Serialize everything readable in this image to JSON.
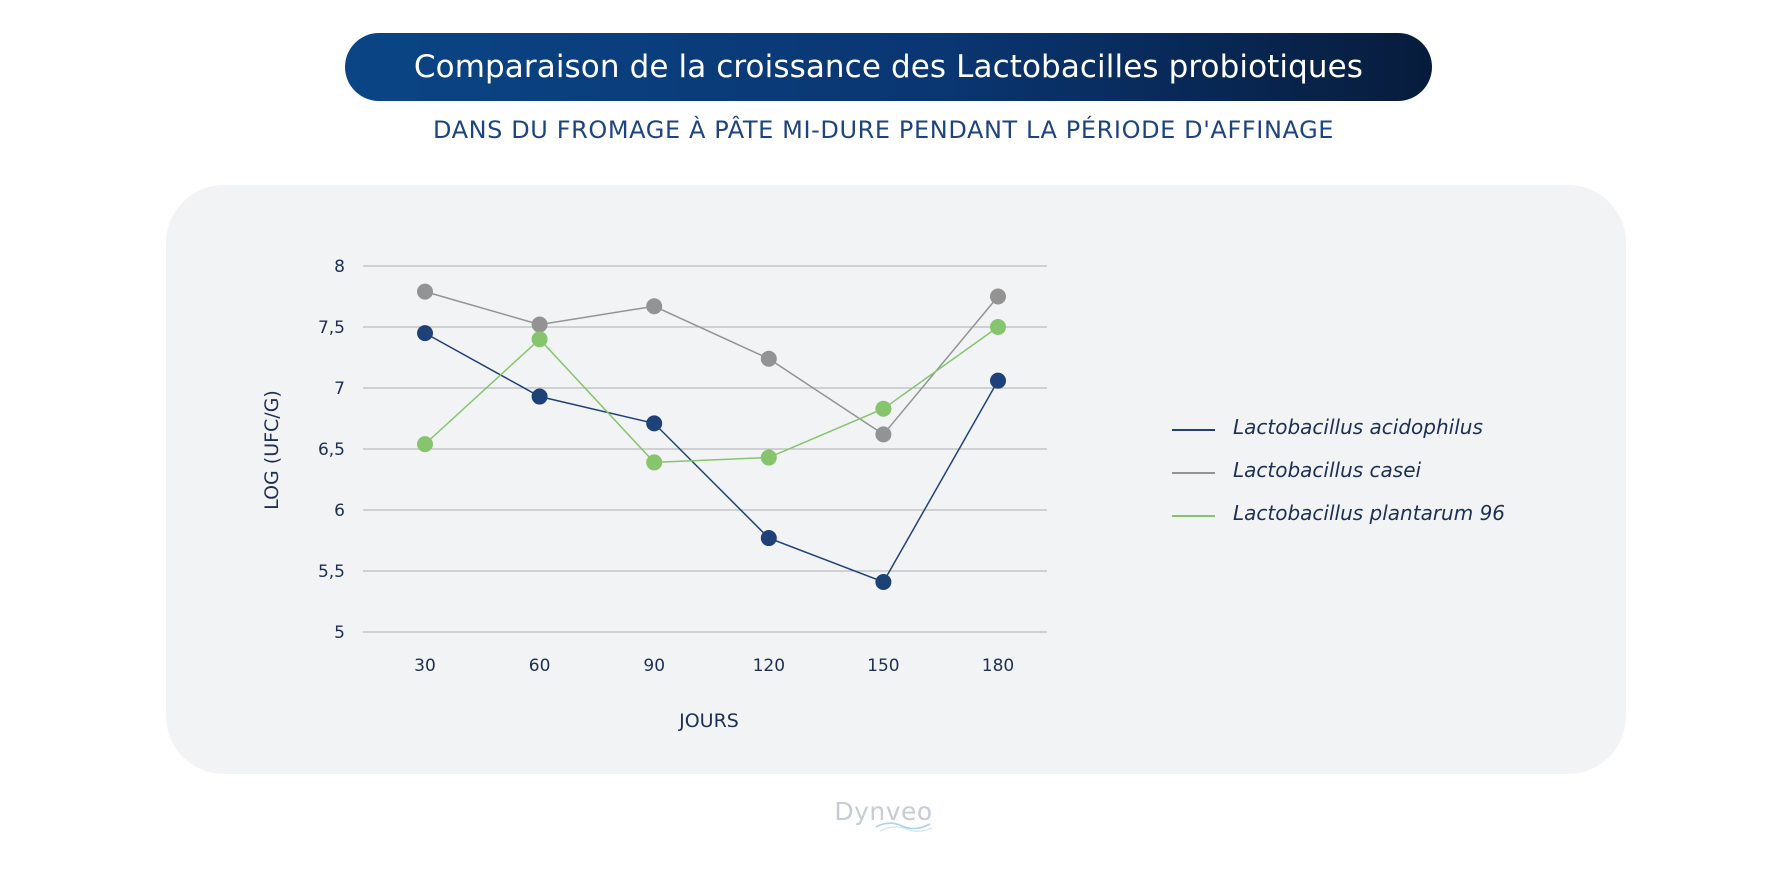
{
  "header": {
    "title": "Comparaison de la croissance des Lactobacilles probiotiques",
    "subtitle": "DANS DU FROMAGE À PÂTE MI-DURE PENDANT LA PÉRIODE D'AFFINAGE"
  },
  "brand": {
    "name": "Dynveo",
    "color": "#c6ccd3"
  },
  "chart_data": {
    "type": "line",
    "title": "Comparaison de la croissance des Lactobacilles probiotiques",
    "subtitle": "DANS DU FROMAGE À PÂTE MI-DURE PENDANT LA PÉRIODE D'AFFINAGE",
    "xlabel": "JOURS",
    "ylabel": "LOG (UFC/G)",
    "categories": [
      "30",
      "60",
      "90",
      "120",
      "150",
      "180"
    ],
    "ylim": [
      5,
      8
    ],
    "yticks": [
      {
        "value": 8,
        "label": "8"
      },
      {
        "value": 7.5,
        "label": "7,5"
      },
      {
        "value": 7,
        "label": "7"
      },
      {
        "value": 6.5,
        "label": "6,5"
      },
      {
        "value": 6,
        "label": "6"
      },
      {
        "value": 5.5,
        "label": "5,5"
      },
      {
        "value": 5,
        "label": "5"
      }
    ],
    "grid": true,
    "legend_position": "right",
    "series": [
      {
        "name": "Lactobacillus acidophilus",
        "color": "#1e4177",
        "values": [
          7.45,
          6.93,
          6.71,
          5.77,
          5.41,
          7.06
        ]
      },
      {
        "name": "Lactobacillus casei",
        "color": "#939393",
        "values": [
          7.79,
          7.52,
          7.67,
          7.24,
          6.62,
          7.75
        ]
      },
      {
        "name": "Lactobacillus plantarum 96",
        "color": "#86c46d",
        "values": [
          6.54,
          7.4,
          6.39,
          6.43,
          6.83,
          7.5
        ]
      }
    ]
  }
}
